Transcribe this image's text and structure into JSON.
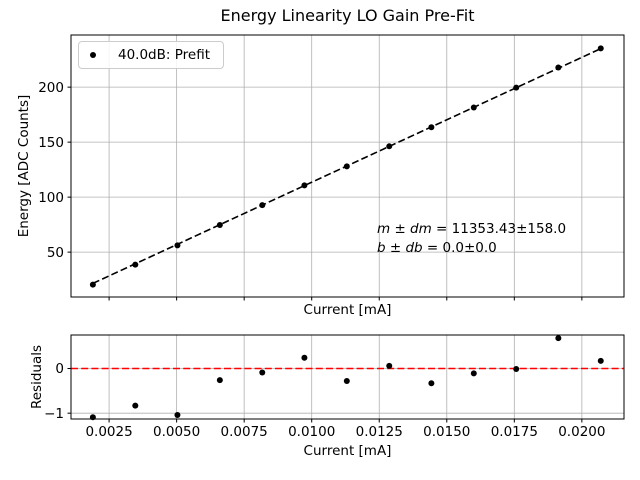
{
  "figure": {
    "background": "#ffffff"
  },
  "colors": {
    "data": "#000000",
    "fit_line": "#000000",
    "zero_line": "#ff0000",
    "grid": "#b0b0b0",
    "spine": "#000000"
  },
  "annotation": {
    "line1_var": "m ± dm",
    "line1_rest": " = 11353.43±158.0",
    "line2_var": "b ± db",
    "line2_rest": " = 0.0±0.0"
  },
  "chart_data": [
    {
      "type": "scatter",
      "title": "Energy Linearity LO Gain Pre-Fit",
      "xlabel": "Current [mA]",
      "ylabel": "Energy [ADC Counts]",
      "xlim": [
        0.00109,
        0.02156
      ],
      "ylim": [
        9.2,
        247.4
      ],
      "xticks": [
        0.0025,
        0.005,
        0.0075,
        0.01,
        0.0125,
        0.015,
        0.0175,
        0.02
      ],
      "xtick_labels_visible": false,
      "yticks": [
        50,
        100,
        150,
        200
      ],
      "grid": true,
      "legend_position": "upper left",
      "series": [
        {
          "name": "40.0dB: Prefit",
          "marker": "dot",
          "color": "#000000",
          "x": [
            0.0019,
            0.00347,
            0.00503,
            0.0066,
            0.00817,
            0.00973,
            0.0113,
            0.01287,
            0.01443,
            0.016,
            0.01757,
            0.01913,
            0.0207
          ],
          "y": [
            20.5,
            38.6,
            56.1,
            74.7,
            92.7,
            110.7,
            128.0,
            146.2,
            163.5,
            181.5,
            199.5,
            217.9,
            235.2
          ]
        }
      ],
      "fit": {
        "m": 11353.43,
        "dm": 158.0,
        "b": 0.0,
        "db": 0.0,
        "style": "dashed",
        "color": "#000000"
      }
    },
    {
      "type": "scatter",
      "title": "",
      "xlabel": "Current [mA]",
      "ylabel": "Residuals",
      "xlim": [
        0.00109,
        0.02156
      ],
      "ylim": [
        -1.13,
        0.75
      ],
      "xticks": [
        0.0025,
        0.005,
        0.0075,
        0.01,
        0.0125,
        0.015,
        0.0175,
        0.02
      ],
      "xtick_labels_visible": true,
      "yticks": [
        -1,
        0
      ],
      "grid": true,
      "zero_line": {
        "y": 0,
        "color": "#ff0000",
        "style": "dashed"
      },
      "series": [
        {
          "name": "residuals",
          "marker": "dot",
          "color": "#000000",
          "x": [
            0.0019,
            0.00347,
            0.00503,
            0.0066,
            0.00817,
            0.00973,
            0.0113,
            0.01287,
            0.01443,
            0.016,
            0.01757,
            0.01913,
            0.0207
          ],
          "y": [
            -1.09,
            -0.83,
            -1.04,
            -0.26,
            -0.09,
            0.24,
            -0.28,
            0.06,
            -0.33,
            -0.11,
            -0.01,
            0.68,
            0.17
          ]
        }
      ]
    }
  ]
}
